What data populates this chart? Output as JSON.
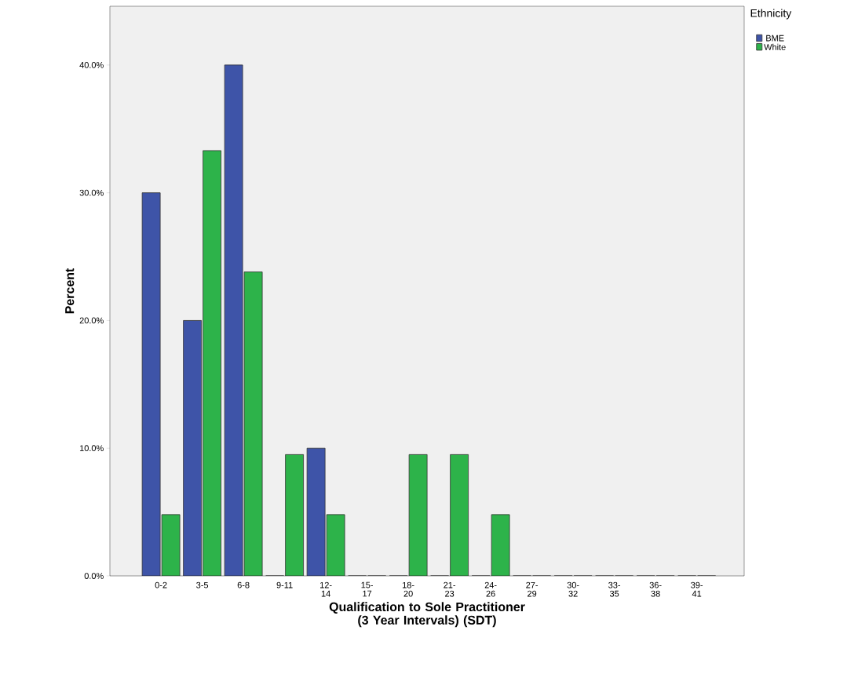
{
  "chart_data": {
    "type": "bar",
    "xlabel": "Qualification to Sole Practitioner (3 Year Intervals) (SDT)",
    "ylabel": "Percent",
    "legend_title": "Ethnicity",
    "legend": "top right",
    "grid": false,
    "categories": [
      "0-2",
      "3-5",
      "6-8",
      "9-11",
      "12- 14",
      "15- 17",
      "18- 20",
      "21- 23",
      "24- 26",
      "27- 29",
      "30- 32",
      "33- 35",
      "36- 38",
      "39- 41"
    ],
    "series": [
      {
        "name": "BME",
        "color": "#3e54a8",
        "values": [
          30,
          20,
          40,
          0,
          10,
          0,
          0,
          0,
          0,
          0,
          0,
          0,
          0,
          0
        ]
      },
      {
        "name": "White",
        "color": "#2db34a",
        "values": [
          4.8,
          33.3,
          23.8,
          9.5,
          4.8,
          0,
          9.5,
          9.5,
          4.8,
          0,
          0,
          0,
          0,
          0
        ]
      }
    ],
    "ylim": [
      0,
      44.6
    ],
    "yticks": [
      {
        "value": 0,
        "label": "0.0%"
      },
      {
        "value": 10,
        "label": "10.0%"
      },
      {
        "value": 20,
        "label": "20.0%"
      },
      {
        "value": 30,
        "label": "30.0%"
      },
      {
        "value": 40,
        "label": "40.0%"
      }
    ]
  }
}
